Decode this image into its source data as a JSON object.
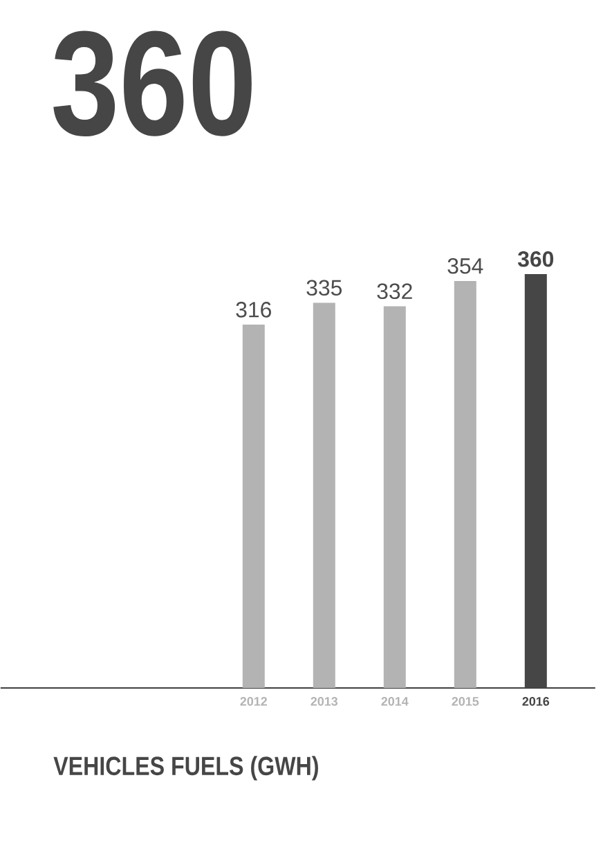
{
  "chart_data": {
    "type": "bar",
    "title": "360",
    "categories": [
      "2012",
      "2013",
      "2014",
      "2015",
      "2016"
    ],
    "values": [
      316,
      335,
      332,
      354,
      360
    ],
    "colors": [
      "#b3b3b3",
      "#b3b3b3",
      "#b3b3b3",
      "#b3b3b3",
      "#464646"
    ],
    "data_labels": true,
    "annotations": [
      "VEHICLES FUELS (GWH)"
    ]
  }
}
